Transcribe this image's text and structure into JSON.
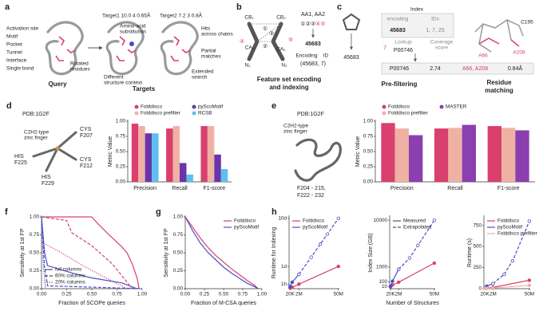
{
  "panels": {
    "a": {
      "letter": "a",
      "site_types": [
        "Activation site",
        "Motif",
        "Pocket",
        "Tunnel",
        "Interface",
        "Single bond"
      ],
      "query": "Query",
      "targets": "Targets",
      "target1": "Target1  10.0  4  0.65Å",
      "target2": "Target2  7.2  3  0.8Å",
      "notes": [
        "Amino-acid",
        "substitution",
        "Rotated",
        "residues",
        "Different",
        "structure context",
        "Hits",
        "across chains",
        "Partial",
        "matches",
        "Extended",
        "search"
      ]
    },
    "b": {
      "letter": "b",
      "atoms": [
        "CB₁",
        "CA₁",
        "N₁",
        "CB₂",
        "CA₂",
        "N₂"
      ],
      "numbers": [
        "①",
        "②",
        "③",
        "④",
        "⑤"
      ],
      "features": "AA1, AA2",
      "tuple_a": "①②③",
      "tuple_b": "④⑤",
      "encoded": "45683",
      "encoding": "Encoding",
      "id": "ID",
      "entry": "(45683,   7)",
      "caption": [
        "Feature set encoding",
        "and indexing"
      ]
    },
    "c": {
      "letter": "c",
      "query_id": "45683",
      "index": "Index",
      "col_encoding": "encoding",
      "col_ids": "IDs",
      "key": "45683",
      "ids": "1, 7, 25",
      "hit_id": "7",
      "lookup": "Lookup",
      "protein": "P00746",
      "coverage": [
        "Coverage",
        "score"
      ],
      "result": [
        "P00746",
        "2.74",
        "A66, A208",
        "0.84Å"
      ],
      "residues": [
        "C195",
        "A66",
        "A208"
      ],
      "captions": [
        "Pre-filtering",
        "Residue",
        "matching"
      ]
    },
    "d": {
      "pdb": "PDB:1G2F",
      "motif": [
        "C2H2-type",
        "zinc finger"
      ],
      "residues": [
        [
          "CYS",
          "F207"
        ],
        [
          "CYS",
          "F212"
        ],
        [
          "HIS",
          "F225"
        ],
        [
          "HIS",
          "F229"
        ]
      ]
    },
    "e": {
      "pdb": "PDB:1G2F",
      "motif": [
        "C2H2-type",
        "zinc finger"
      ],
      "ranges": [
        "F204 - 215,",
        "F222 - 232"
      ]
    }
  },
  "chart_data": [
    {
      "type": "bar",
      "panel_label": "d",
      "ylabel": "Metric Value",
      "categories": [
        "Precision",
        "Recall",
        "F1-score"
      ],
      "legend": "top",
      "ylim": [
        0,
        1
      ],
      "yticks": [
        {
          "value": 0,
          "label": "0.00"
        },
        {
          "value": 0.25,
          "label": "0.25"
        },
        {
          "value": 0.5,
          "label": "0.50"
        },
        {
          "value": 0.75,
          "label": "0.75"
        },
        {
          "value": 1,
          "label": "1.00"
        }
      ],
      "series": [
        {
          "name": "Folddisco",
          "color": "#d9406e",
          "values": [
            0.96,
            0.88,
            0.92
          ]
        },
        {
          "name": "Folddisco prefilter",
          "color": "#efb1a4",
          "values": [
            0.92,
            0.92,
            0.92
          ]
        },
        {
          "name": "pyScoMotif",
          "color": "#6a35a8",
          "values": [
            0.8,
            0.31,
            0.45
          ]
        },
        {
          "name": "RCSB",
          "color": "#5cc0f0",
          "values": [
            0.8,
            0.12,
            0.21
          ]
        }
      ]
    },
    {
      "type": "bar",
      "panel_label": "e",
      "ylabel": "Metric Value",
      "categories": [
        "Precision",
        "Recall",
        "F1-score"
      ],
      "legend": "top",
      "ylim": [
        0,
        1
      ],
      "yticks": [
        {
          "value": 0,
          "label": "0.00"
        },
        {
          "value": 0.25,
          "label": "0.25"
        },
        {
          "value": 0.5,
          "label": "0.50"
        },
        {
          "value": 0.75,
          "label": "0.75"
        },
        {
          "value": 1,
          "label": "1.00"
        }
      ],
      "series": [
        {
          "name": "Folddisco",
          "color": "#d9406e",
          "values": [
            0.97,
            0.88,
            0.92
          ]
        },
        {
          "name": "Folddisco prefilter",
          "color": "#efb1a4",
          "values": [
            0.88,
            0.89,
            0.89
          ]
        },
        {
          "name": "MASTER",
          "color": "#8b3fb0",
          "values": [
            0.77,
            0.94,
            0.85
          ]
        }
      ]
    },
    {
      "type": "line",
      "panel_label": "f",
      "xlabel": "Fraction of SCOPe queries",
      "ylabel": "Sensitivity at 1st FP",
      "legend": "lower left",
      "legend_style": "dash",
      "xlim": [
        0,
        1
      ],
      "ylim": [
        0,
        1
      ],
      "xticks": [
        {
          "value": 0,
          "label": "0.00"
        },
        {
          "value": 0.25,
          "label": "0.25"
        },
        {
          "value": 0.5,
          "label": "0.50"
        },
        {
          "value": 0.75,
          "label": "0.75"
        },
        {
          "value": 1,
          "label": "1.00"
        }
      ],
      "yticks": [
        {
          "value": 0,
          "label": "0.00"
        },
        {
          "value": 0.25,
          "label": "0.25"
        },
        {
          "value": 0.5,
          "label": "0.50"
        },
        {
          "value": 0.75,
          "label": "0.75"
        },
        {
          "value": 1,
          "label": "1.00"
        }
      ],
      "series": [
        {
          "name": "full columns",
          "color": "#d9406e",
          "dash": "solid",
          "x": [
            0,
            0.5,
            0.55,
            0.65,
            0.8,
            0.85,
            0.9,
            0.95,
            0.97
          ],
          "values": [
            1,
            1,
            0.92,
            0.78,
            0.58,
            0.5,
            0.35,
            0.15,
            0
          ]
        },
        {
          "name": "60% columns",
          "color": "#d9406e",
          "dash": "dashed",
          "x": [
            0,
            0.25,
            0.3,
            0.5,
            0.7,
            0.8,
            0.9
          ],
          "values": [
            1,
            0.95,
            0.78,
            0.6,
            0.35,
            0.18,
            0
          ]
        },
        {
          "name": "20% columns",
          "color": "#d9406e",
          "dash": "dotted",
          "x": [
            0,
            0.2,
            0.4,
            0.6,
            0.85
          ],
          "values": [
            0.65,
            0.5,
            0.33,
            0.18,
            0
          ]
        },
        {
          "name": "full columns",
          "color": "#4a4fc4",
          "dash": "solid",
          "x": [
            0,
            0.03,
            0.06,
            0.3,
            0.5,
            0.8,
            0.95
          ],
          "values": [
            1,
            0.5,
            0.32,
            0.22,
            0.15,
            0.08,
            0
          ]
        },
        {
          "name": "60% columns",
          "color": "#4a4fc4",
          "dash": "dashed",
          "x": [
            0,
            0.03,
            0.06,
            1
          ],
          "values": [
            1,
            0.3,
            0.04,
            0
          ]
        },
        {
          "name": "20% columns",
          "color": "#4a4fc4",
          "dash": "dotted",
          "x": [
            0,
            0.02,
            0.04
          ],
          "values": [
            0.9,
            0.3,
            0
          ]
        }
      ]
    },
    {
      "type": "line",
      "panel_label": "g",
      "xlabel": "Fraction of M-CSA queries",
      "ylabel": "Sensitivity at 1st FP",
      "legend": "upper right",
      "xlim": [
        0,
        1
      ],
      "ylim": [
        0,
        1
      ],
      "xticks": [
        {
          "value": 0,
          "label": "0.00"
        },
        {
          "value": 0.25,
          "label": "0.25"
        },
        {
          "value": 0.5,
          "label": "0.50"
        },
        {
          "value": 0.75,
          "label": "0.75"
        },
        {
          "value": 1,
          "label": "1.00"
        }
      ],
      "yticks": [
        {
          "value": 0,
          "label": "0.00"
        },
        {
          "value": 0.25,
          "label": "0.25"
        },
        {
          "value": 0.5,
          "label": "0.50"
        },
        {
          "value": 0.75,
          "label": "0.75"
        },
        {
          "value": 1,
          "label": "1.00"
        }
      ],
      "series": [
        {
          "name": "Folddisco",
          "color": "#d9406e",
          "x": [
            0,
            0.1,
            0.2,
            0.3,
            0.4,
            0.5,
            0.6,
            0.7,
            0.8,
            0.9,
            0.95
          ],
          "values": [
            1,
            0.85,
            0.7,
            0.57,
            0.46,
            0.37,
            0.28,
            0.2,
            0.12,
            0.05,
            0
          ]
        },
        {
          "name": "pyScoMotif",
          "color": "#4a4fc4",
          "x": [
            0,
            0.1,
            0.2,
            0.3,
            0.4,
            0.5,
            0.6,
            0.7,
            0.8,
            0.9,
            0.95
          ],
          "values": [
            1,
            0.8,
            0.63,
            0.5,
            0.4,
            0.3,
            0.22,
            0.15,
            0.08,
            0.03,
            0
          ]
        }
      ]
    },
    {
      "type": "line",
      "panel_label": "h",
      "ylabel": "Runtime for Indexing",
      "legend": "upper left",
      "xscale": "sqrt",
      "yscale": "sqrt",
      "xlim": [
        0,
        52000000
      ],
      "ylim": [
        0,
        250
      ],
      "xticks": [
        {
          "value": 20000,
          "label": "20K"
        },
        {
          "value": 2000000,
          "label": "2M"
        },
        {
          "value": 50000000,
          "label": "50M"
        }
      ],
      "yticks": [
        {
          "value": 1,
          "label": "1h"
        },
        {
          "value": 24,
          "label": "1d"
        },
        {
          "value": 240,
          "label": "10d"
        }
      ],
      "series": [
        {
          "name": "Folddisco",
          "color": "#d9406e",
          "marker": "filled",
          "x": [
            20000,
            200000,
            2000000,
            50000000
          ],
          "values": [
            0.02,
            0.1,
            1,
            24
          ]
        },
        {
          "name": "pyScoMotif",
          "color": "#4a4fc4",
          "marker": "filled",
          "x": [
            20000,
            200000,
            2000000
          ],
          "values": [
            0.2,
            2,
            10
          ]
        },
        {
          "name": "pyScoMotif",
          "color": "#4a4fc4",
          "dash": "dashed",
          "marker": "open",
          "x": [
            2000000,
            10000000,
            20000000,
            30000000,
            50000000
          ],
          "values": [
            10,
            48,
            96,
            144,
            240
          ]
        }
      ]
    },
    {
      "type": "line",
      "xlabel": "Number of Structures",
      "ylabel": "Index Size (GB)",
      "legend": "upper left",
      "legend_style": "dash",
      "xscale": "sqrt",
      "yscale": "sqrt",
      "xlim": [
        0,
        52000000
      ],
      "ylim": [
        0,
        11000
      ],
      "xticks": [
        {
          "value": 20000,
          "label": "20K"
        },
        {
          "value": 2000000,
          "label": "2M"
        },
        {
          "value": 50000000,
          "label": "50M"
        }
      ],
      "yticks": [
        10,
        100,
        1000,
        10000
      ],
      "series": [
        {
          "name": "Measured",
          "color": "#d9406e",
          "marker": "filled",
          "x": [
            20000,
            200000,
            2000000,
            50000000
          ],
          "values": [
            8,
            30,
            90,
            1400
          ]
        },
        {
          "name": "Measured",
          "color": "#4a4fc4",
          "marker": "filled",
          "x": [
            20000,
            200000,
            2000000
          ],
          "values": [
            15,
            120,
            800
          ]
        },
        {
          "name": "Extrapolated",
          "color": "#4a4fc4",
          "dash": "dashed",
          "marker": "open",
          "x": [
            2000000,
            10000000,
            20000000,
            50000000
          ],
          "values": [
            800,
            2000,
            4000,
            10000
          ]
        }
      ]
    },
    {
      "type": "line",
      "ylabel": "Runtime (s)",
      "legend": "upper left",
      "xscale": "sqrt",
      "xlim": [
        0,
        52000000
      ],
      "ylim": [
        0,
        850
      ],
      "xticks": [
        {
          "value": 20000,
          "label": "20K"
        },
        {
          "value": 2000000,
          "label": "2M"
        },
        {
          "value": 50000000,
          "label": "50M"
        }
      ],
      "yticks": [
        0,
        250,
        500,
        750
      ],
      "series": [
        {
          "name": "Folddisco",
          "color": "#d9406e",
          "marker": "filled",
          "x": [
            20000,
            200000,
            2000000,
            50000000
          ],
          "values": [
            5,
            8,
            15,
            100
          ]
        },
        {
          "name": "pyScoMotif",
          "color": "#4a4fc4",
          "marker": "filled",
          "x": [
            20000,
            200000,
            2000000
          ],
          "values": [
            10,
            30,
            60
          ]
        },
        {
          "name": "pyScoMotif",
          "color": "#4a4fc4",
          "dash": "dashed",
          "marker": "open",
          "x": [
            2000000,
            10000000,
            20000000,
            50000000
          ],
          "values": [
            60,
            170,
            330,
            800
          ]
        },
        {
          "name": "Folddisco prefilter",
          "color": "#efb1a4",
          "marker": "filled",
          "x": [
            20000,
            200000,
            2000000,
            50000000
          ],
          "values": [
            3,
            5,
            8,
            40
          ]
        }
      ]
    }
  ]
}
